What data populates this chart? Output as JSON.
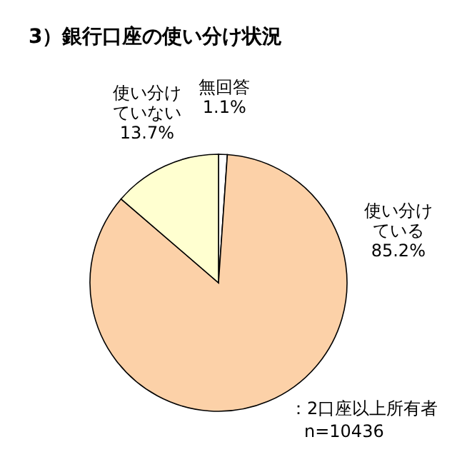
{
  "chart_data": {
    "type": "pie",
    "title": "3）銀行口座の使い分け状況",
    "categories": [
      "無回答",
      "使い分けている",
      "使い分けていない"
    ],
    "values": [
      1.1,
      85.2,
      13.7
    ],
    "colors": [
      "#ffffff",
      "#fcd1a8",
      "#ffffd0"
    ],
    "value_labels": [
      "1.1%",
      "85.2%",
      "13.7%"
    ],
    "annotations": [
      "：2口座以上所有者",
      "n=10436"
    ]
  }
}
